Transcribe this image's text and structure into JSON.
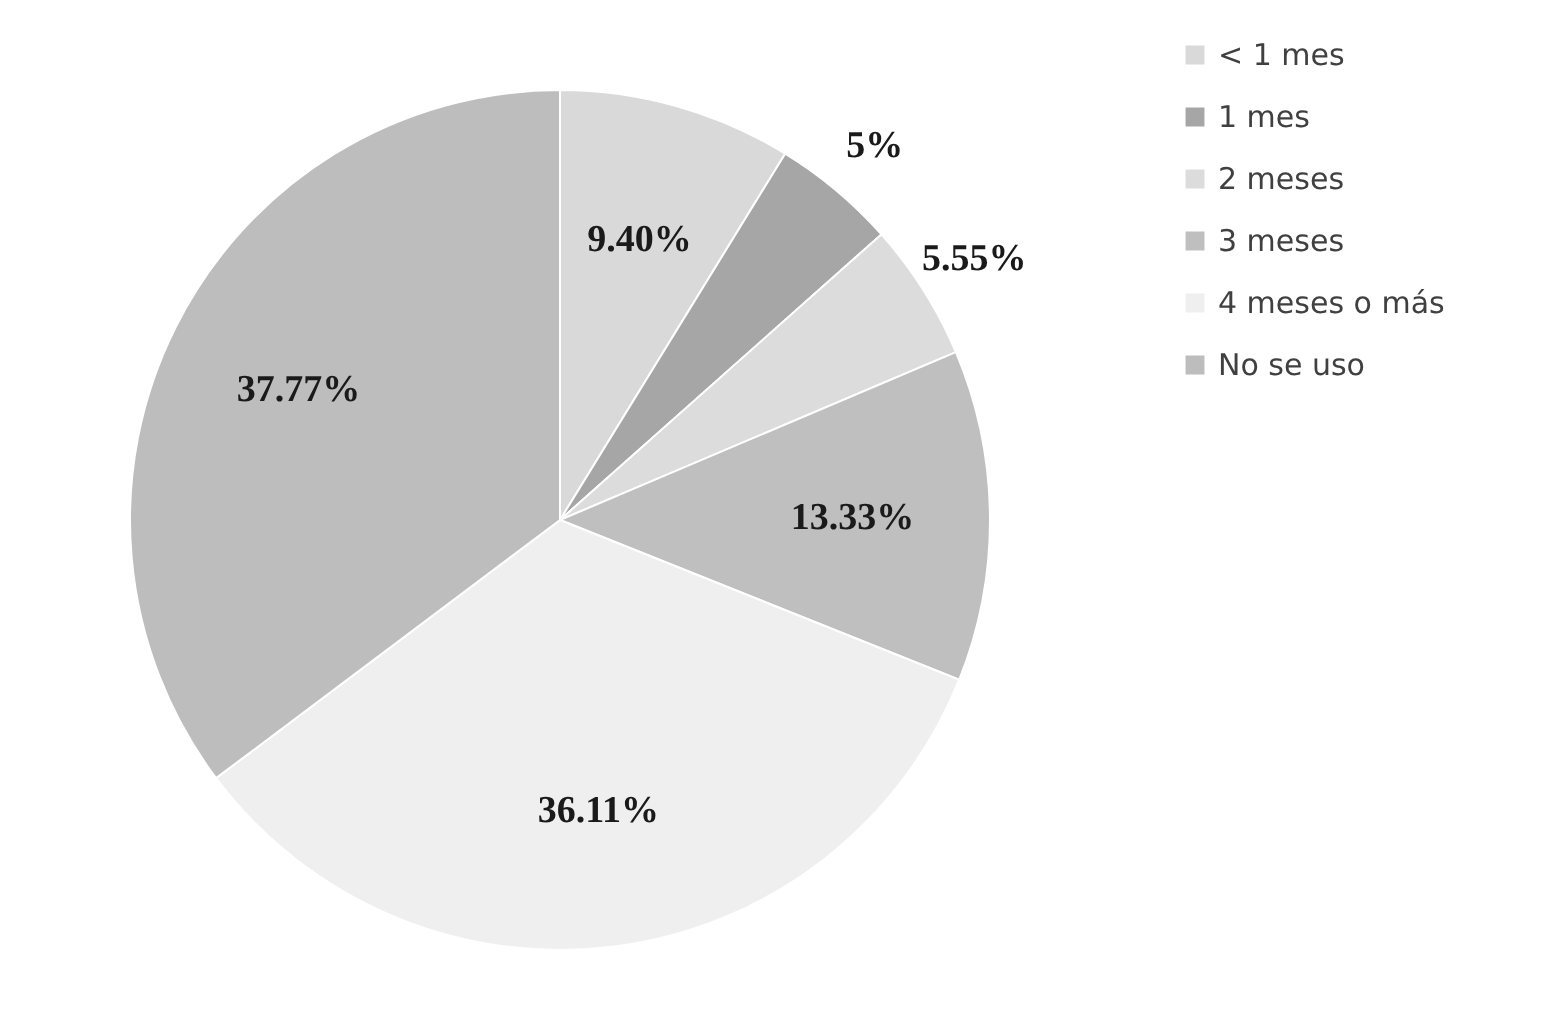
{
  "chart_data": {
    "type": "pie",
    "categories": [
      "< 1 mes",
      "1 mes",
      "2 meses",
      "3 meses",
      "4 meses o más",
      "No se uso"
    ],
    "values": [
      9.4,
      5,
      5.55,
      13.33,
      36.11,
      37.77
    ],
    "value_labels": [
      "9.40%",
      "5%",
      "5.55%",
      "13.33%",
      "36.11%",
      "37.77%"
    ],
    "colors": [
      "#d9d9d9",
      "#a6a6a6",
      "#dcdcdc",
      "#bfbfbf",
      "#efefef",
      "#bdbdbd"
    ],
    "legend": "right"
  }
}
